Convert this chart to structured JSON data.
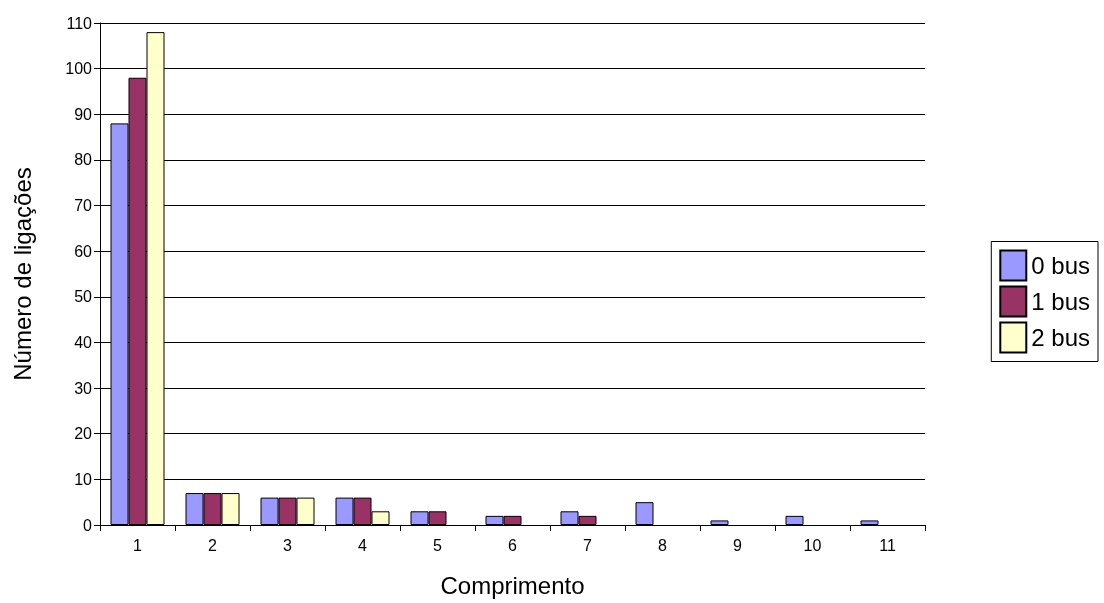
{
  "chart_data": {
    "type": "bar",
    "xlabel": "Comprimento",
    "ylabel": "Número de ligações",
    "categories": [
      "1",
      "2",
      "3",
      "4",
      "5",
      "6",
      "7",
      "8",
      "9",
      "10",
      "11"
    ],
    "series": [
      {
        "name": "0 bus",
        "color": "#9999ff",
        "values": [
          88,
          7,
          6,
          6,
          3,
          2,
          3,
          5,
          1,
          2,
          1
        ]
      },
      {
        "name": "1 bus",
        "color": "#993366",
        "values": [
          98,
          7,
          6,
          6,
          3,
          2,
          2,
          null,
          null,
          null,
          null
        ]
      },
      {
        "name": "2 bus",
        "color": "#ffffcc",
        "values": [
          108,
          7,
          6,
          3,
          null,
          null,
          null,
          null,
          null,
          null,
          null
        ]
      }
    ],
    "ylim": [
      0,
      110
    ],
    "yticks": [
      0,
      10,
      20,
      30,
      40,
      50,
      60,
      70,
      80,
      90,
      100,
      110
    ],
    "grid": "y",
    "legend": "right"
  }
}
